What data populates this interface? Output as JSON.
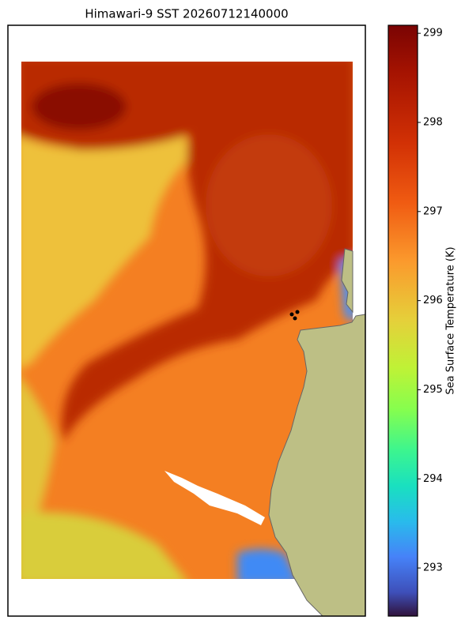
{
  "chart_data": {
    "type": "map",
    "title": "Himawari-9 SST 20260712140000",
    "colorbar_label": "Sea Surface Temperature (K)",
    "ylim": [
      292.46,
      299.09
    ],
    "yticks": [
      293,
      294,
      295,
      296,
      297,
      298,
      299
    ]
  }
}
